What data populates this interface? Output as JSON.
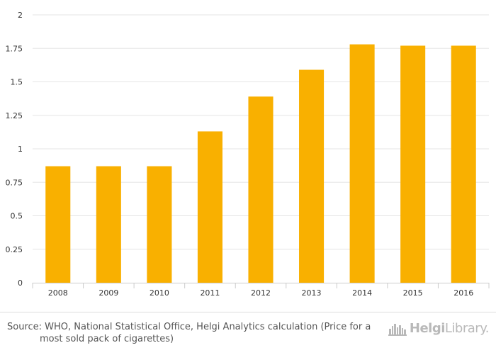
{
  "chart_data": {
    "type": "bar",
    "categories": [
      "2008",
      "2009",
      "2010",
      "2011",
      "2012",
      "2013",
      "2014",
      "2015",
      "2016"
    ],
    "values": [
      0.87,
      0.87,
      0.87,
      1.13,
      1.39,
      1.59,
      1.78,
      1.77,
      1.77
    ],
    "ylim": [
      0,
      2
    ],
    "yticks": [
      "0",
      "0.25",
      "0.5",
      "0.75",
      "1",
      "1.25",
      "1.5",
      "1.75",
      "2"
    ],
    "ytick_values": [
      0,
      0.25,
      0.5,
      0.75,
      1,
      1.25,
      1.5,
      1.75,
      2
    ],
    "grid": true,
    "bar_color": "#F9B000",
    "title": "",
    "xlabel": "",
    "ylabel": ""
  },
  "footer": {
    "source_line1": "Source: WHO, National Statistical Office, Helgi Analytics calculation (Price for a",
    "source_line2": "most sold pack of cigarettes)",
    "brand_bold": "Helgi",
    "brand_light": "Library."
  },
  "colors": {
    "grid": "#e6e6e6",
    "axis": "#cccccc",
    "tick_text": "#333333",
    "brand": "#b9b9b9"
  }
}
